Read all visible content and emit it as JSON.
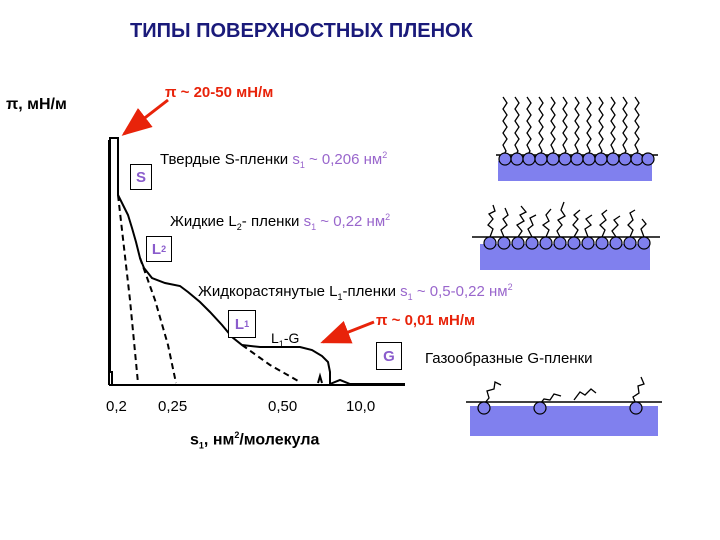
{
  "title": "ТИПЫ ПОВЕРХНОСТНЫХ ПЛЕНОК",
  "y_axis_label": "π, мН/м",
  "x_axis_label": {
    "main": "s",
    "sub": "1",
    "unit_pre": ", нм",
    "sup": "2",
    "unit_post": "/молекула"
  },
  "x_ticks": [
    "0,2",
    "0,25",
    "0,50",
    "10,0"
  ],
  "annotations": {
    "high_pressure": "π ~ 20-50 мН/м",
    "low_pressure": "π ~ 0,01 мН/м"
  },
  "phase_boxes": {
    "S": "S",
    "L2": {
      "main": "L",
      "sub": "2"
    },
    "L1": {
      "main": "L",
      "sub": "1"
    },
    "G": "G"
  },
  "transition_label": {
    "main": "L",
    "sub": "1",
    "rest": "-G"
  },
  "films": {
    "solid": {
      "prefix": "Твердые S-пленки ",
      "s": "s",
      "s_sub": "1",
      "value": " ~ 0,206 нм",
      "sup": "2"
    },
    "liquid": {
      "prefix": "Жидкие L",
      "prefix_sub": "2",
      "mid": "- пленки ",
      "s": "s",
      "s_sub": "1",
      "value": " ~ 0,22 нм",
      "sup": "2"
    },
    "expanded": {
      "prefix": "Жидкорастянутые L",
      "prefix_sub": "1",
      "mid": "-пленки ",
      "s": "s",
      "s_sub": "1",
      "value": " ~ 0,5-0,22 нм",
      "sup": "2"
    },
    "gas": "Газообразные G-пленки"
  },
  "colors": {
    "title": "#1a1a7a",
    "annotation": "#e8230a",
    "accent": "#9966cc",
    "water": "#8080ee"
  }
}
